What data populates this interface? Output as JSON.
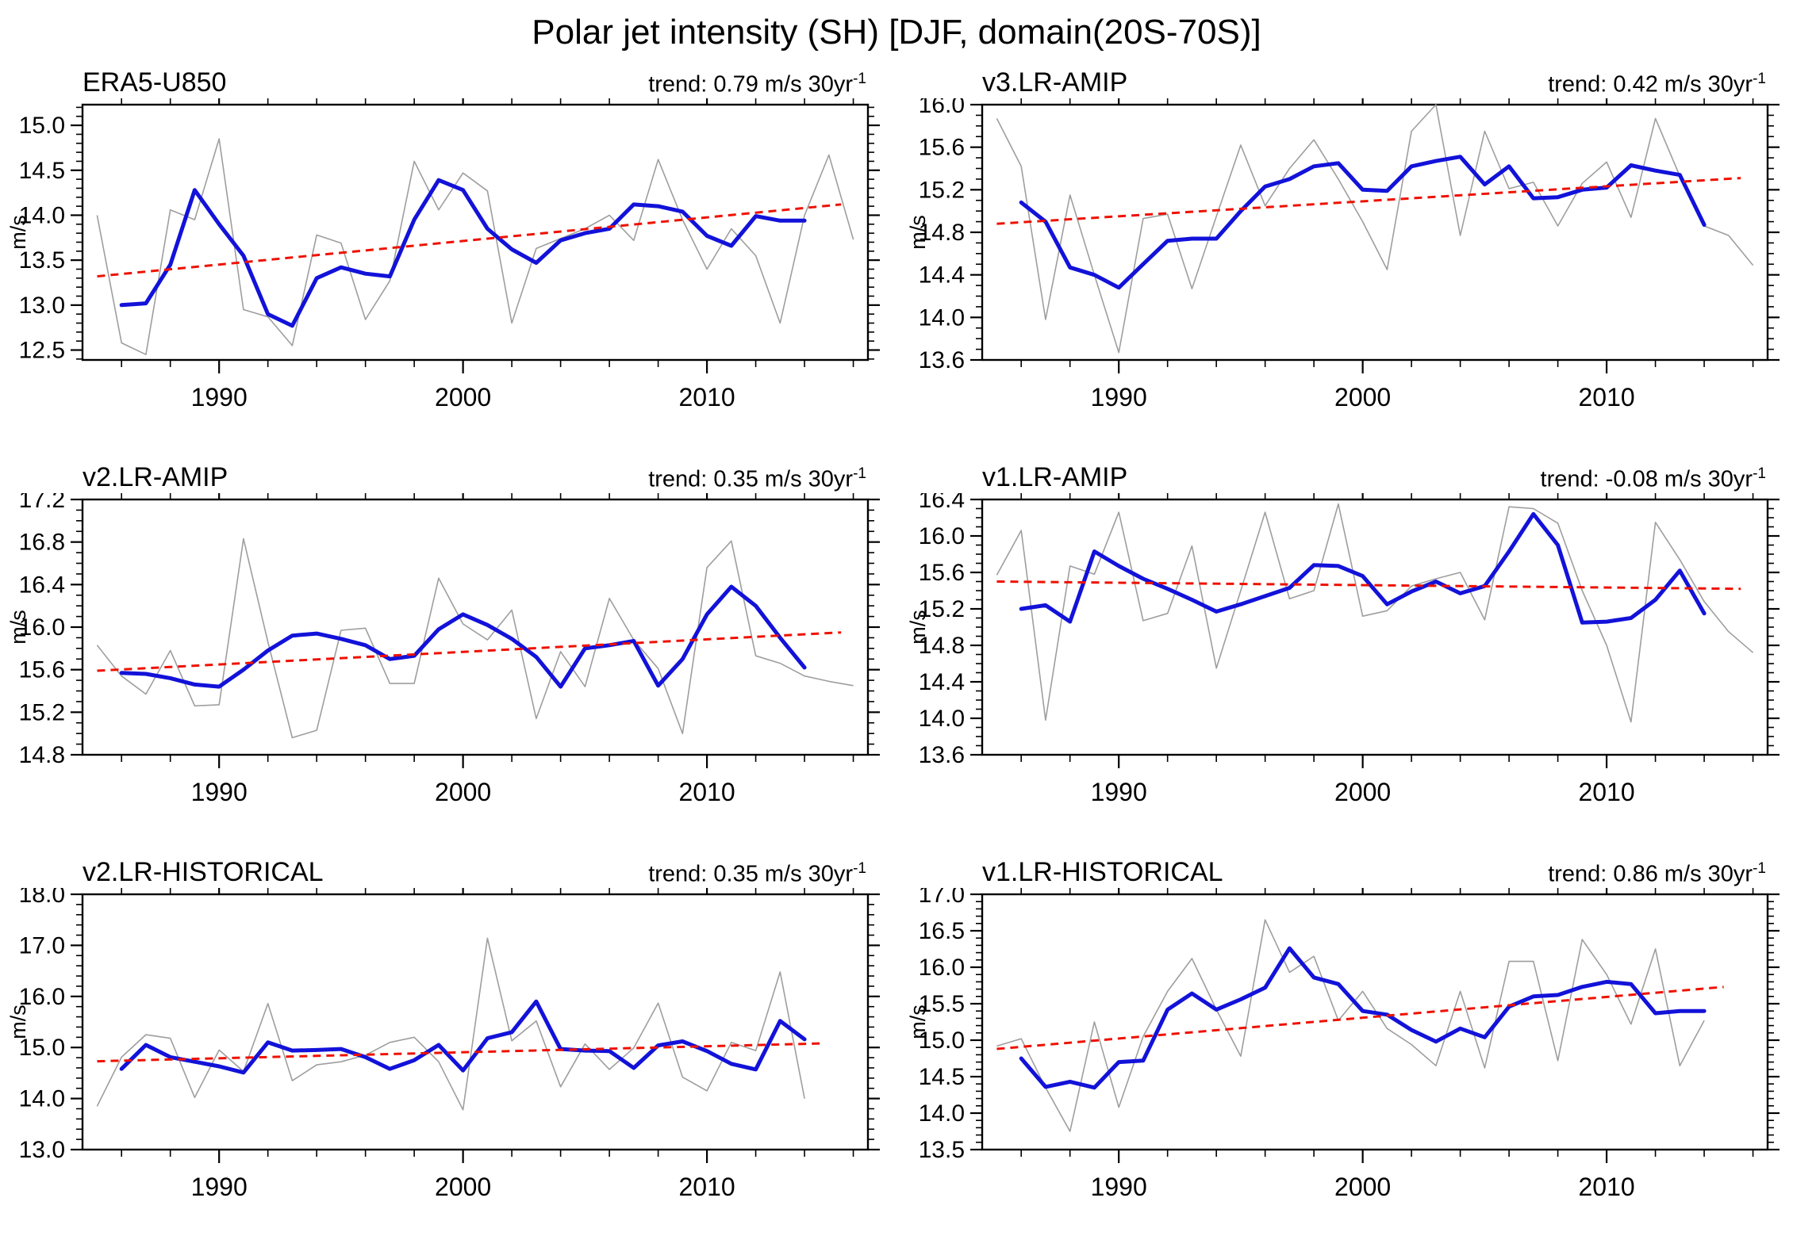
{
  "title": "Polar jet intensity (SH) [DJF, domain(20S-70S)]",
  "ylabel": "m/s",
  "colors": {
    "annual_line": "#9e9e9e",
    "smoothed_line": "#1212d9",
    "trend_line": "#ee1100",
    "axis": "#000000"
  },
  "x_axis": {
    "lim": [
      1984.4,
      2016.6
    ],
    "labeled_ticks": [
      1990,
      2000,
      2010
    ],
    "minor_step_years": 2
  },
  "chart_data": [
    {
      "type": "line",
      "title": "ERA5-U850",
      "trend_text": "trend: 0.79 m/s 30yr",
      "trend_sup": "-1",
      "trend_per_30yr": 0.79,
      "ylim": [
        12.39,
        15.23
      ],
      "ytick_major": 0.5,
      "ytick_minor": 0.1,
      "series": [
        {
          "name": "annual",
          "year_start": 1985,
          "values": [
            14.0,
            12.58,
            12.45,
            14.06,
            13.95,
            14.85,
            12.95,
            12.87,
            12.55,
            13.78,
            13.69,
            12.84,
            13.27,
            14.6,
            14.06,
            14.47,
            14.27,
            12.8,
            13.63,
            13.74,
            13.85,
            14.0,
            13.72,
            14.62,
            13.95,
            13.4,
            13.85,
            13.55,
            12.8,
            14.0,
            14.67,
            13.73
          ]
        },
        {
          "name": "smoothed",
          "year_start": 1986,
          "values": [
            13.0,
            13.02,
            13.45,
            14.28,
            13.9,
            13.55,
            12.9,
            12.77,
            13.3,
            13.42,
            13.35,
            13.32,
            13.95,
            14.39,
            14.28,
            13.85,
            13.62,
            13.47,
            13.72,
            13.8,
            13.85,
            14.12,
            14.1,
            14.04,
            13.77,
            13.66,
            13.99,
            13.94,
            13.94
          ]
        }
      ],
      "trend_line": {
        "x": [
          1985,
          2015.5
        ],
        "y": [
          13.32,
          14.12
        ]
      }
    },
    {
      "type": "line",
      "title": "v3.LR-AMIP",
      "trend_text": "trend: 0.42 m/s 30yr",
      "trend_sup": "-1",
      "trend_per_30yr": 0.42,
      "ylim": [
        13.6,
        16.0
      ],
      "ytick_major": 0.4,
      "ytick_minor": 0.1,
      "series": [
        {
          "name": "annual",
          "year_start": 1985,
          "values": [
            15.87,
            15.42,
            13.98,
            15.15,
            14.4,
            13.67,
            14.93,
            14.97,
            14.27,
            14.95,
            15.62,
            15.05,
            15.4,
            15.67,
            15.3,
            14.9,
            14.45,
            15.75,
            16.0,
            14.77,
            15.75,
            15.21,
            15.27,
            14.86,
            15.26,
            15.46,
            14.94,
            15.87,
            15.33,
            14.86,
            14.77,
            14.49
          ]
        },
        {
          "name": "smoothed",
          "year_start": 1986,
          "values": [
            15.08,
            14.9,
            14.47,
            14.4,
            14.28,
            14.5,
            14.72,
            14.74,
            14.74,
            15.0,
            15.23,
            15.3,
            15.42,
            15.45,
            15.2,
            15.19,
            15.42,
            15.47,
            15.51,
            15.25,
            15.42,
            15.12,
            15.13,
            15.2,
            15.22,
            15.43,
            15.38,
            15.34,
            14.87
          ]
        }
      ],
      "trend_line": {
        "x": [
          1985,
          2015.5
        ],
        "y": [
          14.88,
          15.31
        ]
      }
    },
    {
      "type": "line",
      "title": "v2.LR-AMIP",
      "trend_text": "trend: 0.35 m/s 30yr",
      "trend_sup": "-1",
      "trend_per_30yr": 0.35,
      "ylim": [
        14.8,
        17.2
      ],
      "ytick_major": 0.4,
      "ytick_minor": 0.1,
      "series": [
        {
          "name": "annual",
          "year_start": 1985,
          "values": [
            15.83,
            15.54,
            15.37,
            15.78,
            15.26,
            15.27,
            16.83,
            15.86,
            14.96,
            15.03,
            15.97,
            15.99,
            15.47,
            15.47,
            16.46,
            16.03,
            15.88,
            16.16,
            15.14,
            15.77,
            15.44,
            16.27,
            15.88,
            15.61,
            15.0,
            16.56,
            16.81,
            15.73,
            15.66,
            15.54,
            15.49,
            15.45
          ]
        },
        {
          "name": "smoothed",
          "year_start": 1986,
          "values": [
            15.57,
            15.56,
            15.52,
            15.46,
            15.44,
            15.6,
            15.78,
            15.92,
            15.94,
            15.89,
            15.83,
            15.7,
            15.73,
            15.98,
            16.12,
            16.02,
            15.89,
            15.72,
            15.44,
            15.8,
            15.83,
            15.87,
            15.45,
            15.7,
            16.12,
            16.38,
            16.2,
            15.9,
            15.62
          ]
        }
      ],
      "trend_line": {
        "x": [
          1985,
          2015.5
        ],
        "y": [
          15.59,
          15.95
        ]
      }
    },
    {
      "type": "line",
      "title": "v1.LR-AMIP",
      "trend_text": "trend: -0.08 m/s 30yr",
      "trend_sup": "-1",
      "trend_per_30yr": -0.08,
      "ylim": [
        13.6,
        16.4
      ],
      "ytick_major": 0.4,
      "ytick_minor": 0.1,
      "series": [
        {
          "name": "annual",
          "year_start": 1985,
          "values": [
            15.57,
            16.06,
            13.98,
            15.67,
            15.58,
            16.26,
            15.07,
            15.15,
            15.89,
            14.55,
            15.4,
            16.26,
            15.31,
            15.4,
            16.35,
            15.12,
            15.18,
            15.45,
            15.53,
            15.6,
            15.08,
            16.32,
            16.3,
            16.14,
            15.4,
            14.8,
            13.96,
            16.15,
            15.74,
            15.28,
            14.95,
            14.72
          ]
        },
        {
          "name": "smoothed",
          "year_start": 1986,
          "values": [
            15.2,
            15.24,
            15.06,
            15.83,
            15.67,
            15.53,
            15.42,
            15.3,
            15.17,
            15.25,
            15.34,
            15.43,
            15.68,
            15.67,
            15.56,
            15.25,
            15.39,
            15.5,
            15.37,
            15.45,
            15.83,
            16.24,
            15.9,
            15.05,
            15.06,
            15.1,
            15.3,
            15.62,
            15.15
          ]
        }
      ],
      "trend_line": {
        "x": [
          1985,
          2015.5
        ],
        "y": [
          15.5,
          15.42
        ]
      }
    },
    {
      "type": "line",
      "title": "v2.LR-HISTORICAL",
      "trend_text": "trend: 0.35 m/s 30yr",
      "trend_sup": "-1",
      "trend_per_30yr": 0.35,
      "ylim": [
        13.0,
        18.0
      ],
      "ytick_major": 1.0,
      "ytick_minor": 0.2,
      "series": [
        {
          "name": "annual",
          "year_start": 1985,
          "values": [
            13.85,
            14.81,
            15.25,
            15.18,
            14.02,
            14.95,
            14.53,
            15.86,
            14.35,
            14.66,
            14.72,
            14.85,
            15.1,
            15.2,
            14.72,
            13.78,
            17.14,
            15.13,
            15.52,
            14.23,
            15.07,
            14.57,
            14.99,
            15.87,
            14.42,
            14.15,
            15.1,
            14.94,
            16.48,
            14.0
          ]
        },
        {
          "name": "smoothed",
          "year_start": 1986,
          "values": [
            14.58,
            15.05,
            14.81,
            14.72,
            14.63,
            14.51,
            15.1,
            14.94,
            14.95,
            14.97,
            14.81,
            14.58,
            14.75,
            15.05,
            14.55,
            15.18,
            15.3,
            15.9,
            14.97,
            14.94,
            14.93,
            14.6,
            15.04,
            15.12,
            14.93,
            14.68,
            14.57,
            15.52,
            15.16
          ]
        }
      ],
      "trend_line": {
        "x": [
          1985,
          2014.8
        ],
        "y": [
          14.73,
          15.08
        ]
      }
    },
    {
      "type": "line",
      "title": "v1.LR-HISTORICAL",
      "trend_text": "trend: 0.86 m/s 30yr",
      "trend_sup": "-1",
      "trend_per_30yr": 0.86,
      "ylim": [
        13.5,
        17.0
      ],
      "ytick_major": 0.5,
      "ytick_minor": 0.1,
      "series": [
        {
          "name": "annual",
          "year_start": 1985,
          "values": [
            14.92,
            15.02,
            14.35,
            13.75,
            15.25,
            14.08,
            15.05,
            15.67,
            16.12,
            15.42,
            14.78,
            16.65,
            15.93,
            16.15,
            15.27,
            15.67,
            15.16,
            14.94,
            14.65,
            15.67,
            14.62,
            16.08,
            16.08,
            14.72,
            16.38,
            15.9,
            15.22,
            16.25,
            14.65,
            15.27
          ]
        },
        {
          "name": "smoothed",
          "year_start": 1986,
          "values": [
            14.75,
            14.36,
            14.43,
            14.35,
            14.7,
            14.72,
            15.42,
            15.64,
            15.42,
            15.56,
            15.72,
            16.26,
            15.86,
            15.77,
            15.4,
            15.35,
            15.14,
            14.98,
            15.16,
            15.04,
            15.46,
            15.6,
            15.62,
            15.73,
            15.8,
            15.77,
            15.37,
            15.4,
            15.4
          ]
        }
      ],
      "trend_line": {
        "x": [
          1985,
          2014.8
        ],
        "y": [
          14.88,
          15.73
        ]
      }
    }
  ]
}
